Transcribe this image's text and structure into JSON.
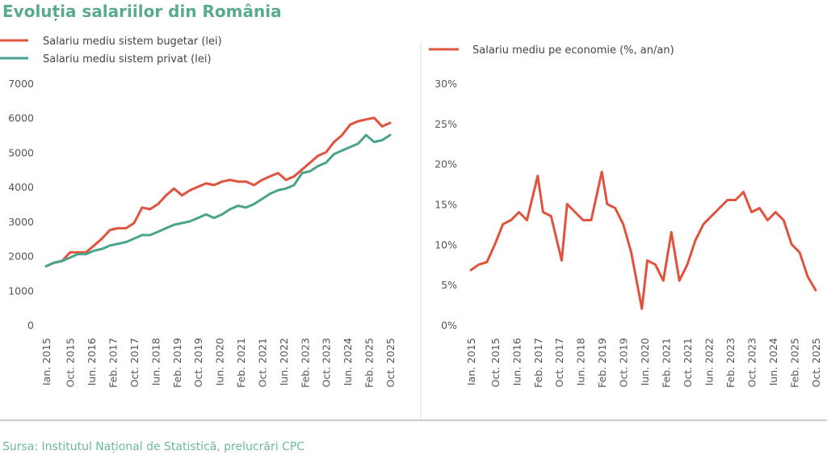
{
  "colors": {
    "red": "#e0533d",
    "green": "#4aa38c",
    "title": "#5aaa8e",
    "source": "#6fb7a0"
  },
  "title": "Evoluția salariilor din România",
  "source": "Sursa: Institutul Național de Statistică, prelucrări CPC",
  "chart_data": [
    {
      "type": "line",
      "title": "",
      "legend_position": "top-left",
      "grid": false,
      "ylim": [
        0,
        7000
      ],
      "y_ticks": [
        "0",
        "1000",
        "2000",
        "3000",
        "4000",
        "5000",
        "6000",
        "7000"
      ],
      "x_ticks": [
        "Ian. 2015",
        "Oct. 2015",
        "Iun. 2016",
        "Feb. 2017",
        "Oct. 2017",
        "Iun. 2018",
        "Feb. 2019",
        "Oct. 2019",
        "Iun. 2020",
        "Feb. 2021",
        "Oct. 2021",
        "Iun. 2022",
        "Feb. 2023",
        "Oct. 2023",
        "Iun. 2024",
        "Feb. 2025",
        "Oct. 2025"
      ],
      "x": [
        "2015-01",
        "2015-04",
        "2015-07",
        "2015-10",
        "2016-01",
        "2016-04",
        "2016-07",
        "2016-10",
        "2017-01",
        "2017-04",
        "2017-07",
        "2017-10",
        "2018-01",
        "2018-04",
        "2018-07",
        "2018-10",
        "2019-01",
        "2019-04",
        "2019-07",
        "2019-10",
        "2020-01",
        "2020-04",
        "2020-07",
        "2020-10",
        "2021-01",
        "2021-04",
        "2021-07",
        "2021-10",
        "2022-01",
        "2022-04",
        "2022-07",
        "2022-10",
        "2023-01",
        "2023-04",
        "2023-07",
        "2023-10",
        "2024-01",
        "2024-04",
        "2024-07",
        "2024-10",
        "2025-01",
        "2025-04",
        "2025-07",
        "2025-10"
      ],
      "series": [
        {
          "name": "Salariu mediu sistem bugetar (lei)",
          "color": "#e0533d",
          "values": [
            1700,
            1800,
            1850,
            2100,
            2100,
            2100,
            2300,
            2500,
            2750,
            2800,
            2800,
            2950,
            3400,
            3350,
            3500,
            3750,
            3950,
            3750,
            3900,
            4000,
            4100,
            4050,
            4150,
            4200,
            4150,
            4150,
            4050,
            4200,
            4300,
            4400,
            4200,
            4300,
            4500,
            4700,
            4900,
            5000,
            5300,
            5500,
            5800,
            5900,
            5950,
            6000,
            5750,
            5850
          ]
        },
        {
          "name": "Salariu mediu sistem privat (lei)",
          "color": "#4aa38c",
          "values": [
            1700,
            1800,
            1850,
            1950,
            2050,
            2050,
            2150,
            2200,
            2300,
            2350,
            2400,
            2500,
            2600,
            2600,
            2700,
            2800,
            2900,
            2950,
            3000,
            3100,
            3200,
            3100,
            3200,
            3350,
            3450,
            3400,
            3500,
            3650,
            3800,
            3900,
            3950,
            4050,
            4400,
            4450,
            4600,
            4700,
            4950,
            5050,
            5150,
            5250,
            5500,
            5300,
            5350,
            5500
          ]
        }
      ]
    },
    {
      "type": "line",
      "title": "",
      "legend_position": "top",
      "grid": false,
      "ylim": [
        0,
        30
      ],
      "y_ticks": [
        "0%",
        "5%",
        "10%",
        "15%",
        "20%",
        "25%",
        "30%"
      ],
      "x_ticks": [
        "Ian. 2015",
        "Oct. 2015",
        "Iun. 2016",
        "Feb. 2017",
        "Oct. 2017",
        "Iun. 2018",
        "Feb. 2019",
        "Oct. 2019",
        "Iun. 2020",
        "Feb. 2021",
        "Oct. 2021",
        "Iun. 2022",
        "Feb. 2023",
        "Oct. 2023",
        "Iun. 2024",
        "Feb. 2025",
        "Oct. 2025"
      ],
      "x": [
        "2015-01",
        "2015-04",
        "2015-07",
        "2015-10",
        "2016-01",
        "2016-04",
        "2016-07",
        "2016-10",
        "2017-02",
        "2017-04",
        "2017-07",
        "2017-11",
        "2018-01",
        "2018-04",
        "2018-07",
        "2018-10",
        "2019-02",
        "2019-04",
        "2019-07",
        "2019-10",
        "2020-01",
        "2020-05",
        "2020-07",
        "2020-10",
        "2021-01",
        "2021-04",
        "2021-07",
        "2021-10",
        "2022-01",
        "2022-04",
        "2022-07",
        "2022-10",
        "2023-01",
        "2023-04",
        "2023-07",
        "2023-10",
        "2024-01",
        "2024-04",
        "2024-07",
        "2024-10",
        "2025-01",
        "2025-04",
        "2025-07",
        "2025-10"
      ],
      "series": [
        {
          "name": "Salariu mediu pe economie (%, an/an)",
          "color": "#e0533d",
          "values": [
            6.8,
            7.5,
            7.8,
            10,
            12.5,
            13,
            14,
            13,
            18.5,
            14,
            13.5,
            8,
            15,
            14,
            13,
            13,
            19,
            15,
            14.5,
            12.5,
            9,
            2,
            8,
            7.5,
            5.5,
            11.5,
            5.5,
            7.5,
            10.5,
            12.5,
            13.5,
            14.5,
            15.5,
            15.5,
            16.5,
            14,
            14.5,
            13,
            14,
            13,
            10,
            9,
            6,
            4.3
          ]
        }
      ]
    }
  ]
}
